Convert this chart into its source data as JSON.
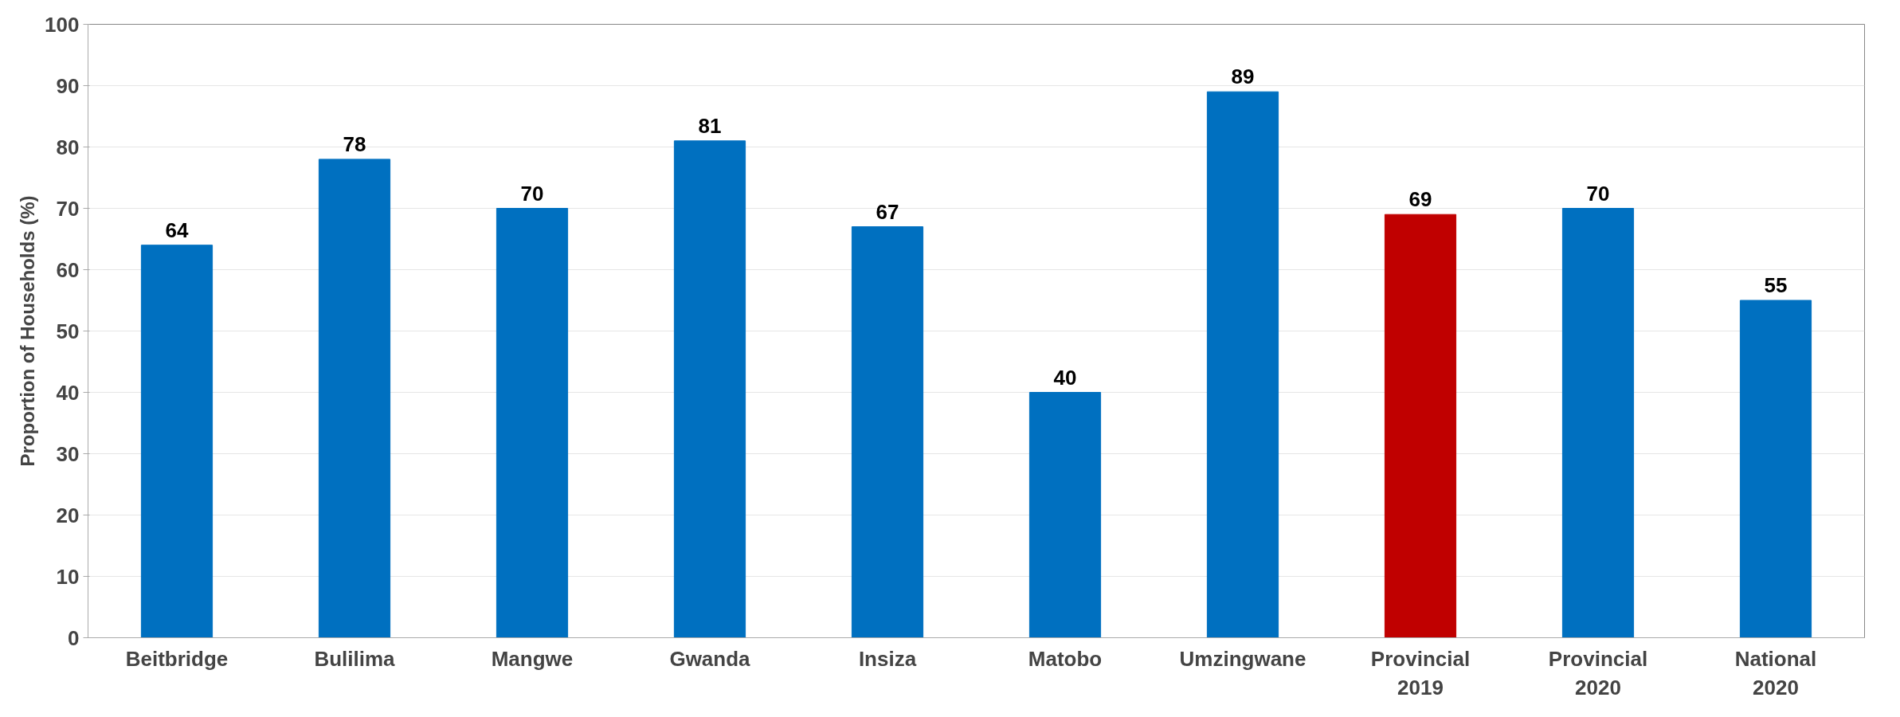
{
  "chart_data": {
    "type": "bar",
    "ylabel": "Proportion of Households (%)",
    "categories": [
      "Beitbridge",
      "Bulilima",
      "Mangwe",
      "Gwanda",
      "Insiza",
      "Matobo",
      "Umzingwane",
      "Provincial\n2019",
      "Provincial\n2020",
      "National\n2020"
    ],
    "values": [
      64,
      78,
      70,
      81,
      67,
      40,
      89,
      69,
      70,
      55
    ],
    "colors": [
      "#0070c0",
      "#0070c0",
      "#0070c0",
      "#0070c0",
      "#0070c0",
      "#0070c0",
      "#0070c0",
      "#c00000",
      "#0070c0",
      "#0070c0"
    ],
    "ylim": [
      0,
      100
    ],
    "yticks": [
      0,
      10,
      20,
      30,
      40,
      50,
      60,
      70,
      80,
      90,
      100
    ],
    "grid": "y",
    "data_labels": true
  }
}
